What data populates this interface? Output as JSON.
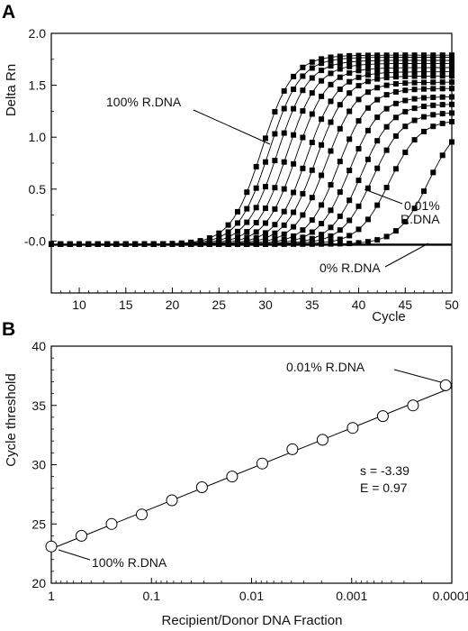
{
  "chart_data": [
    {
      "panel": "A",
      "type": "line",
      "xlabel": "Cycle",
      "ylabel": "Delta Rn",
      "xlim": [
        7,
        50
      ],
      "ylim": [
        -0.5,
        2.0
      ],
      "xticks": [
        "10",
        "15",
        "20",
        "25",
        "30",
        "35",
        "40",
        "45",
        "50"
      ],
      "yticks": [
        "-0.0",
        "0.5",
        "1.0",
        "1.5",
        "2.0"
      ],
      "grid": false,
      "series": [
        {
          "midpoint": 29.6,
          "plateau": 1.82
        },
        {
          "midpoint": 30.4,
          "plateau": 1.8
        },
        {
          "midpoint": 31.3,
          "plateau": 1.77
        },
        {
          "midpoint": 32.3,
          "plateau": 1.74
        },
        {
          "midpoint": 33.3,
          "plateau": 1.7
        },
        {
          "midpoint": 34.4,
          "plateau": 1.66
        },
        {
          "midpoint": 35.4,
          "plateau": 1.62
        },
        {
          "midpoint": 36.5,
          "plateau": 1.56
        },
        {
          "midpoint": 37.8,
          "plateau": 1.5
        },
        {
          "midpoint": 39.0,
          "plateau": 1.42
        },
        {
          "midpoint": 40.3,
          "plateau": 1.35
        },
        {
          "midpoint": 41.5,
          "plateau": 1.27
        },
        {
          "midpoint": 43.3,
          "plateau": 1.2
        },
        {
          "midpoint": 47.5,
          "plateau": 1.2
        }
      ],
      "annotations": [
        {
          "text": "100% R.DNA",
          "x": 30.0,
          "y": 0.95
        },
        {
          "text": "0.01%",
          "x": 47.0,
          "y": 0.12
        },
        {
          "text": "R.DNA",
          "x": 47.0,
          "y": 0.12
        },
        {
          "text": "0% R.DNA",
          "x": 45.0,
          "y": -0.05
        }
      ]
    },
    {
      "panel": "B",
      "type": "scatter",
      "xlabel": "Recipient/Donor DNA Fraction",
      "ylabel": "Cycle threshold",
      "x_scale": "log",
      "x_reversed": true,
      "xlim": [
        1,
        0.0001
      ],
      "ylim": [
        20,
        40
      ],
      "xticks": [
        "1",
        "0.1",
        "0.01",
        "0.001",
        "0.0001"
      ],
      "yticks": [
        "20",
        "25",
        "30",
        "35",
        "40"
      ],
      "grid": false,
      "points": [
        {
          "x": 1.0,
          "y": 23.1
        },
        {
          "x": 0.5,
          "y": 24.0
        },
        {
          "x": 0.25,
          "y": 25.0
        },
        {
          "x": 0.125,
          "y": 25.8
        },
        {
          "x": 0.0625,
          "y": 27.0
        },
        {
          "x": 0.03125,
          "y": 28.1
        },
        {
          "x": 0.015625,
          "y": 29.0
        },
        {
          "x": 0.0078125,
          "y": 30.1
        },
        {
          "x": 0.00390625,
          "y": 31.3
        },
        {
          "x": 0.001953,
          "y": 32.1
        },
        {
          "x": 0.000977,
          "y": 33.1
        },
        {
          "x": 0.000488,
          "y": 34.1
        },
        {
          "x": 0.000244,
          "y": 35.0
        },
        {
          "x": 0.000115,
          "y": 36.7
        }
      ],
      "fit_line": {
        "x": [
          1,
          0.0001
        ],
        "y": [
          22.9,
          36.5
        ]
      },
      "stats": {
        "slope": "s = -3.39",
        "efficiency": "E = 0.97"
      },
      "annotations": [
        {
          "text": "0.01% R.DNA",
          "x": 0.000115,
          "y": 36.7
        },
        {
          "text": "100% R.DNA",
          "x": 1.0,
          "y": 23.1
        }
      ]
    }
  ],
  "panel_labels": [
    "A",
    "B"
  ]
}
